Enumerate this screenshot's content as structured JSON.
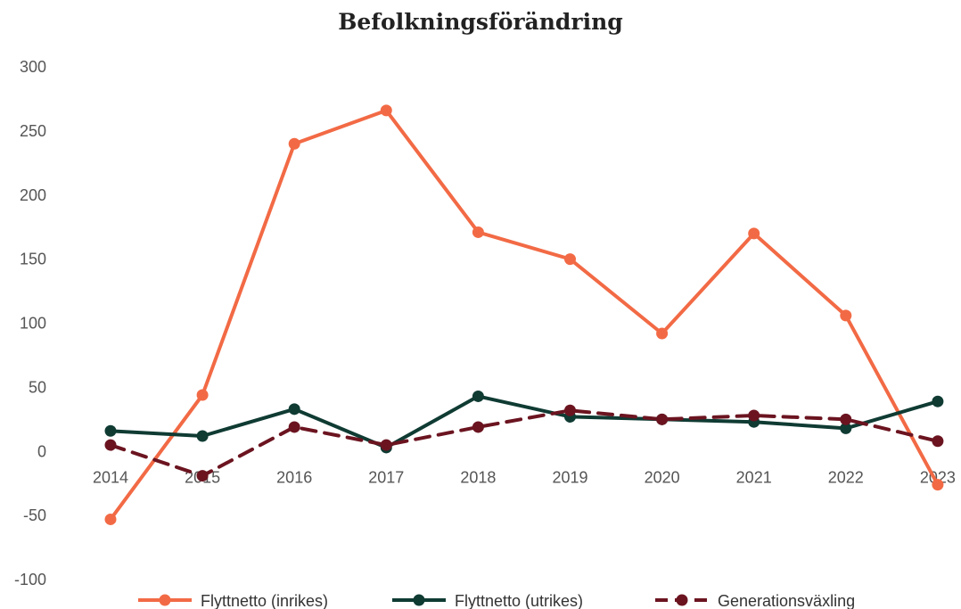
{
  "chart_data": {
    "type": "line",
    "title": "Befolkningsförändring",
    "xlabel": "",
    "ylabel": "",
    "categories": [
      "2014",
      "2015",
      "2016",
      "2017",
      "2018",
      "2019",
      "2020",
      "2021",
      "2022",
      "2023"
    ],
    "ylim": [
      -100,
      300
    ],
    "yticks": [
      300,
      250,
      200,
      150,
      100,
      50,
      0,
      -50,
      -100
    ],
    "grid": false,
    "legend": "bottom",
    "series": [
      {
        "name": "Flyttnetto (inrikes)",
        "color": "#f26a45",
        "dash": false,
        "values": [
          -53,
          44,
          240,
          266,
          171,
          150,
          92,
          170,
          106,
          -26
        ]
      },
      {
        "name": "Flyttnetto (utrikes)",
        "color": "#0f3b33",
        "dash": false,
        "values": [
          16,
          12,
          33,
          3,
          43,
          27,
          25,
          23,
          18,
          39
        ]
      },
      {
        "name": "Generationsväxling",
        "color": "#6b1420",
        "dash": true,
        "values": [
          5,
          -19,
          19,
          5,
          19,
          32,
          25,
          28,
          25,
          8
        ]
      }
    ]
  }
}
